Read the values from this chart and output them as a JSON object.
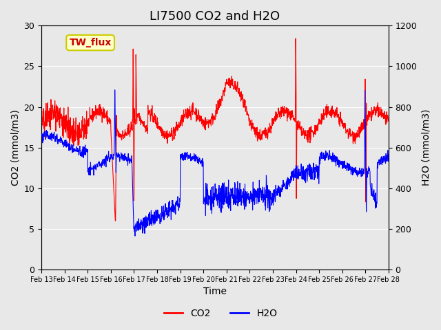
{
  "title": "LI7500 CO2 and H2O",
  "xlabel": "Time",
  "ylabel_left": "CO2 (mmol/m3)",
  "ylabel_right": "H2O (mmol/m3)",
  "annotation_text": "TW_flux",
  "annotation_bg": "#ffffcc",
  "annotation_border": "#cccc00",
  "annotation_color": "#cc0000",
  "co2_color": "#ff0000",
  "h2o_color": "#0000ff",
  "background_color": "#e8e8e8",
  "ylim_left": [
    0,
    30
  ],
  "ylim_right": [
    0,
    1200
  ],
  "yticks_left": [
    0,
    5,
    10,
    15,
    20,
    25,
    30
  ],
  "yticks_right": [
    0,
    200,
    400,
    600,
    800,
    1000,
    1200
  ],
  "xtick_labels": [
    "Feb 13",
    "Feb 14",
    "Feb 15",
    "Feb 16",
    "Feb 17",
    "Feb 18",
    "Feb 19",
    "Feb 20",
    "Feb 21",
    "Feb 22",
    "Feb 23",
    "Feb 24",
    "Feb 25",
    "Feb 26",
    "Feb 27",
    "Feb 28"
  ],
  "num_points": 1500,
  "legend_co2": "CO2",
  "legend_h2o": "H2O",
  "title_fontsize": 13,
  "axis_label_fontsize": 10,
  "tick_fontsize": 9,
  "legend_fontsize": 10,
  "h2o_scale": 40
}
